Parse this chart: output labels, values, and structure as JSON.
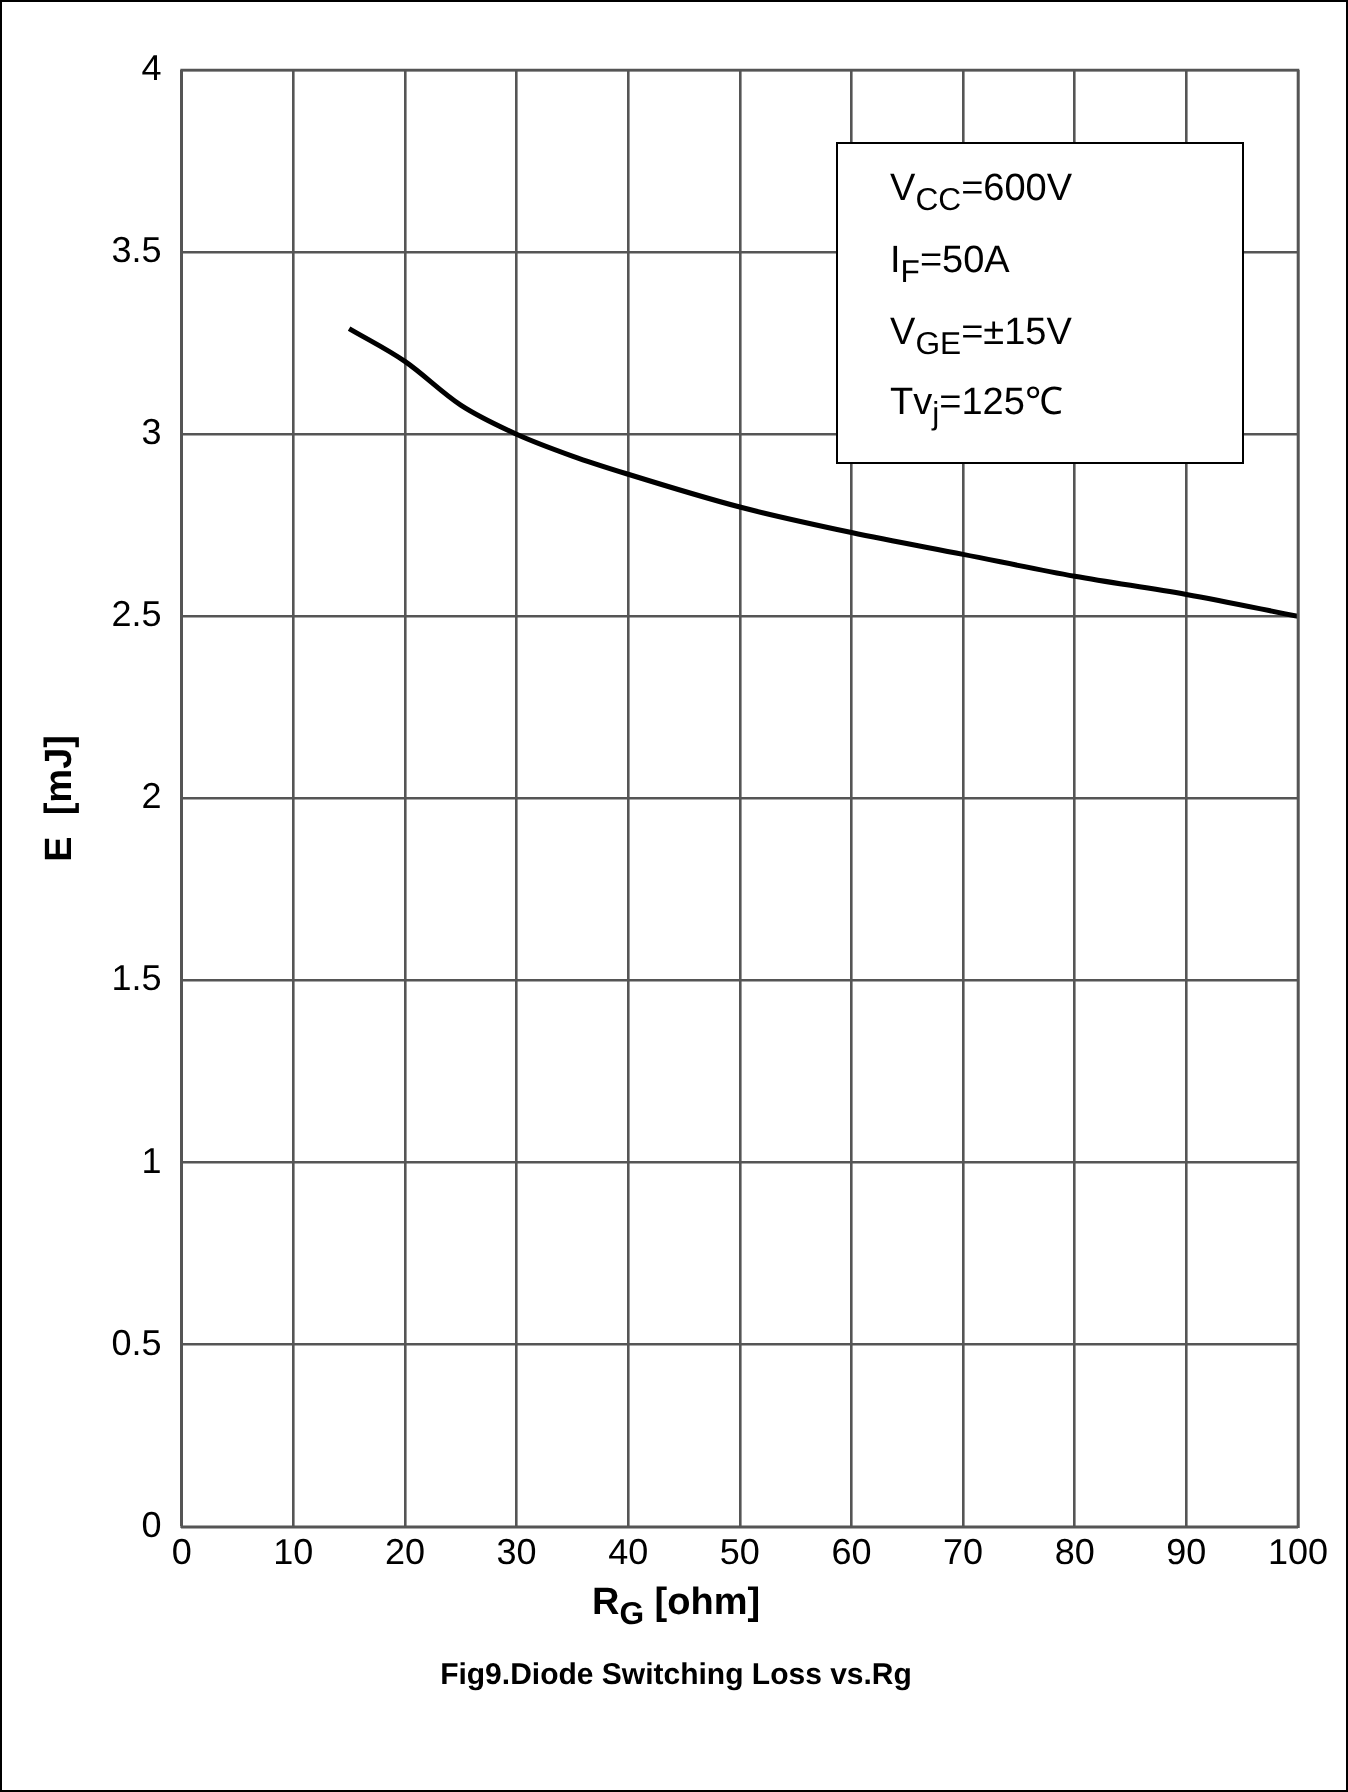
{
  "chart_data": {
    "type": "line",
    "title": "Fig9.Diode Switching Loss vs.Rg",
    "xlabel": "R$_{G}$  [ohm]",
    "ylabel": "E  [mJ]",
    "annotations": [
      "V$_{CC}$=600V",
      "I$_{F}$=50A",
      "V$_{GE}$=±15V",
      "Tv$_{j}$=125℃"
    ],
    "x": [
      15,
      20,
      25,
      30,
      35,
      40,
      50,
      60,
      70,
      80,
      90,
      100
    ],
    "series": [
      {
        "color": "#000000",
        "values": [
          3.29,
          3.2,
          3.08,
          3.0,
          2.94,
          2.89,
          2.8,
          2.73,
          2.67,
          2.61,
          2.56,
          2.5
        ]
      }
    ],
    "xlim": [
      0,
      100
    ],
    "xticks": [
      0,
      10,
      20,
      30,
      40,
      50,
      60,
      70,
      80,
      90,
      100
    ],
    "ylim": [
      0,
      4
    ],
    "yticks": [
      0,
      0.5,
      1,
      1.5,
      2,
      2.5,
      3,
      3.5,
      4
    ],
    "grid": true,
    "legend": false,
    "marker": "none",
    "line_style": "solid"
  }
}
